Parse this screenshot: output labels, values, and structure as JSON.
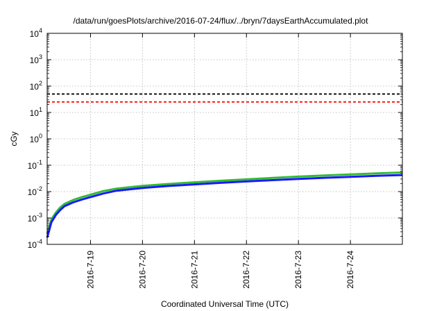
{
  "chart_data": {
    "type": "line",
    "title": "/data/run/goesPlots/archive/2016-07-24/flux/../bryn/7daysEarthAccumulated.plot",
    "xlabel": "Coordinated Universal Time (UTC)",
    "ylabel": "cGy",
    "yscale": "log",
    "ylim": [
      0.0001,
      10000
    ],
    "xlim": [
      "2016-07-18 04:00",
      "2016-07-24 23:59"
    ],
    "grid": true,
    "y_ticks": [
      {
        "value": 0.0001,
        "mantissa": "10",
        "exp": "-4"
      },
      {
        "value": 0.001,
        "mantissa": "10",
        "exp": "-3"
      },
      {
        "value": 0.01,
        "mantissa": "10",
        "exp": "-2"
      },
      {
        "value": 0.1,
        "mantissa": "10",
        "exp": "-1"
      },
      {
        "value": 1,
        "mantissa": "10",
        "exp": "0"
      },
      {
        "value": 10,
        "mantissa": "10",
        "exp": "1"
      },
      {
        "value": 100,
        "mantissa": "10",
        "exp": "2"
      },
      {
        "value": 1000,
        "mantissa": "10",
        "exp": "3"
      },
      {
        "value": 10000,
        "mantissa": "10",
        "exp": "4"
      }
    ],
    "x_ticks": [
      {
        "value": "2016-07-19 00:00",
        "label": "2016-7-19"
      },
      {
        "value": "2016-07-20 00:00",
        "label": "2016-7-20"
      },
      {
        "value": "2016-07-21 00:00",
        "label": "2016-7-21"
      },
      {
        "value": "2016-07-22 00:00",
        "label": "2016-7-22"
      },
      {
        "value": "2016-07-23 00:00",
        "label": "2016-7-23"
      },
      {
        "value": "2016-07-24 00:00",
        "label": "2016-7-24"
      }
    ],
    "thresholds": [
      {
        "value": 50,
        "color": "#000000",
        "style": "dashed"
      },
      {
        "value": 25,
        "color": "#ff0000",
        "style": "dashed"
      }
    ],
    "series": [
      {
        "color": "#33bb33",
        "x": [
          "2016-07-18 04:00",
          "2016-07-18 06:00",
          "2016-07-18 08:00",
          "2016-07-18 10:00",
          "2016-07-18 12:00",
          "2016-07-18 16:00",
          "2016-07-18 20:00",
          "2016-07-19 00:00",
          "2016-07-19 06:00",
          "2016-07-19 12:00",
          "2016-07-20 00:00",
          "2016-07-20 12:00",
          "2016-07-21 00:00",
          "2016-07-21 12:00",
          "2016-07-22 00:00",
          "2016-07-22 12:00",
          "2016-07-23 00:00",
          "2016-07-23 12:00",
          "2016-07-24 00:00",
          "2016-07-24 12:00",
          "2016-07-24 23:59"
        ],
        "values": [
          0.00025,
          0.0009,
          0.0016,
          0.0025,
          0.0034,
          0.0048,
          0.0062,
          0.0076,
          0.0105,
          0.013,
          0.0165,
          0.0195,
          0.0225,
          0.0258,
          0.029,
          0.033,
          0.037,
          0.041,
          0.045,
          0.049,
          0.053
        ]
      },
      {
        "color": "#1a1aff",
        "x": [
          "2016-07-18 04:00",
          "2016-07-18 06:00",
          "2016-07-18 08:00",
          "2016-07-18 10:00",
          "2016-07-18 12:00",
          "2016-07-18 16:00",
          "2016-07-18 20:00",
          "2016-07-19 00:00",
          "2016-07-19 06:00",
          "2016-07-19 12:00",
          "2016-07-20 00:00",
          "2016-07-20 12:00",
          "2016-07-21 00:00",
          "2016-07-21 12:00",
          "2016-07-22 00:00",
          "2016-07-22 12:00",
          "2016-07-23 00:00",
          "2016-07-23 12:00",
          "2016-07-24 00:00",
          "2016-07-24 12:00",
          "2016-07-24 23:59"
        ],
        "values": [
          0.00018,
          0.0007,
          0.0013,
          0.002,
          0.0028,
          0.0039,
          0.005,
          0.0062,
          0.0085,
          0.0108,
          0.0137,
          0.0163,
          0.0188,
          0.0215,
          0.0242,
          0.0272,
          0.0302,
          0.0333,
          0.0364,
          0.0395,
          0.0425
        ]
      }
    ]
  }
}
